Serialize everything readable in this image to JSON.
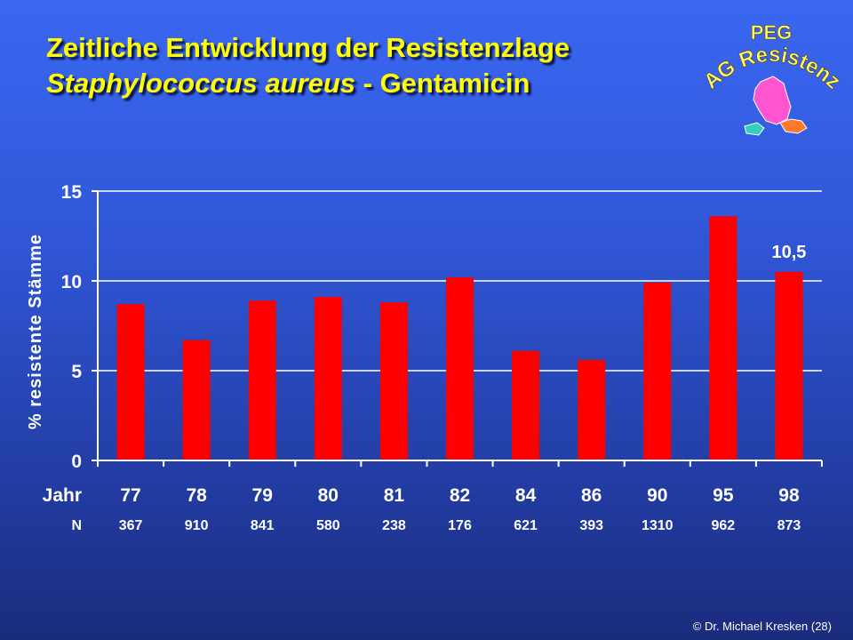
{
  "title": {
    "line1": "Zeitliche Entwicklung der Resistenzlage",
    "line2_italic": "Staphylococcus aureus",
    "line2_rest": " - Gentamicin"
  },
  "logo": {
    "top_text": "PEG",
    "arc_text": "AG Resistenz",
    "colors": {
      "germany": "#ff55d0",
      "austria": "#ff7a2a",
      "switzerland": "#30d0c0",
      "text": "#ffff66"
    }
  },
  "chart_data": {
    "type": "bar",
    "ylabel": "% resistente Stämme",
    "xlabel": "Jahr",
    "n_label": "N",
    "categories": [
      "77",
      "78",
      "79",
      "80",
      "81",
      "82",
      "84",
      "86",
      "90",
      "95",
      "98"
    ],
    "n_values": [
      "367",
      "910",
      "841",
      "580",
      "238",
      "176",
      "621",
      "393",
      "1310",
      "962",
      "873"
    ],
    "values": [
      8.7,
      6.7,
      8.9,
      9.1,
      8.8,
      10.2,
      6.1,
      5.6,
      9.9,
      13.6,
      10.5
    ],
    "ylim": [
      0,
      15
    ],
    "yticks": [
      0,
      5,
      10,
      15
    ],
    "annotation": {
      "category": "98",
      "text": "10,5"
    },
    "grid": true,
    "bar_color": "#ff0000"
  },
  "footer": {
    "copyright": "© Dr. Michael Kresken (28)"
  }
}
